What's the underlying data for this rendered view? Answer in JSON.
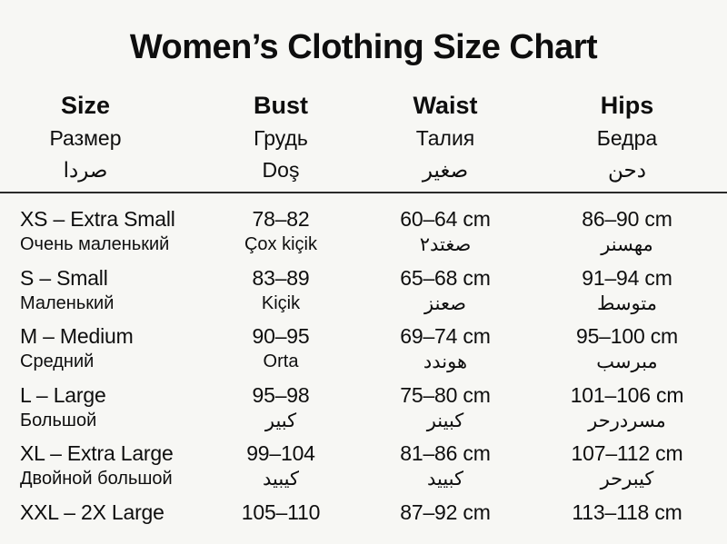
{
  "chart_data": {
    "type": "table",
    "title": "Women’s Clothing Size Chart",
    "columns": [
      {
        "en": "Size",
        "ru": "Размер",
        "third": "صردا"
      },
      {
        "en": "Bust",
        "ru": "Грудь",
        "third": "Doş"
      },
      {
        "en": "Waist",
        "ru": "Талия",
        "third": "صغير"
      },
      {
        "en": "Hips",
        "ru": "Бедра",
        "third": "دحن"
      }
    ],
    "rows": [
      {
        "size": "XS – Extra Small",
        "size_sub": "Очень маленький",
        "bust": "78–82",
        "bust_sub": "Çox kiçik",
        "waist": "60–64 cm",
        "waist_sub": "صغتد٢",
        "hips": "86–90 cm",
        "hips_sub": "مهسنر"
      },
      {
        "size": "S – Small",
        "size_sub": "Маленький",
        "bust": "83–89",
        "bust_sub": "Kiçik",
        "waist": "65–68 cm",
        "waist_sub": "صعنز",
        "hips": "91–94 cm",
        "hips_sub": "متوسط"
      },
      {
        "size": "M – Medium",
        "size_sub": "Средний",
        "bust": "90–95",
        "bust_sub": "Orta",
        "waist": "69–74 cm",
        "waist_sub": "هوندد",
        "hips": "95–100 cm",
        "hips_sub": "مبرسب"
      },
      {
        "size": "L – Large",
        "size_sub": "Большой",
        "bust": "95–98",
        "bust_sub": "كبير",
        "waist": "75–80 cm",
        "waist_sub": "كبينر",
        "hips": "101–106 cm",
        "hips_sub": "مسردرحر"
      },
      {
        "size": "XL – Extra Large",
        "size_sub": "Двойной большой",
        "bust": "99–104",
        "bust_sub": "كيبيد",
        "waist": "81–86 cm",
        "waist_sub": "كبييد",
        "hips": "107–112 cm",
        "hips_sub": "كيبرحر"
      },
      {
        "size": "XXL – 2X Large",
        "bust": "105–110",
        "waist": "87–92 cm",
        "hips": "113–118 cm"
      }
    ],
    "colors": {
      "background": "#f7f7f4",
      "text": "#0e0e0e",
      "divider": "#2a2a2a"
    }
  }
}
